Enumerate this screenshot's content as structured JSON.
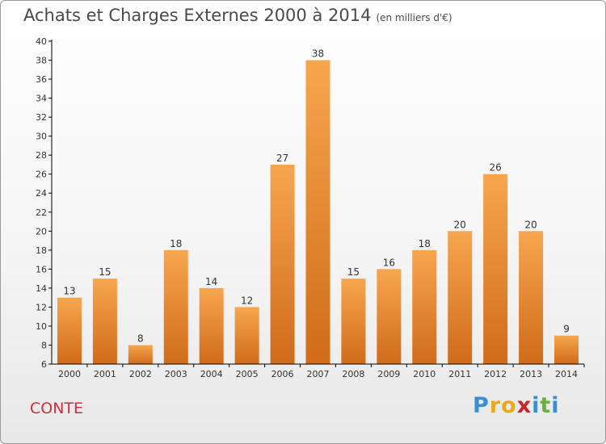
{
  "title": "Achats et Charges Externes 2000 à 2014",
  "unit": "(en milliers d'€)",
  "town": "CONTE",
  "logo": {
    "letters": [
      "P",
      "r",
      "o",
      "x",
      "i",
      "t",
      "i"
    ],
    "colors": [
      "#3a8fd4",
      "#e8a820",
      "#e8a820",
      "#c32a2a",
      "#3a8fd4",
      "#6ab23a",
      "#3a8fd4"
    ]
  },
  "chart_data": {
    "type": "bar",
    "categories": [
      "2000",
      "2001",
      "2002",
      "2003",
      "2004",
      "2005",
      "2006",
      "2007",
      "2008",
      "2009",
      "2010",
      "2011",
      "2012",
      "2013",
      "2014"
    ],
    "values": [
      13,
      15,
      8,
      18,
      14,
      12,
      27,
      38,
      15,
      16,
      18,
      20,
      26,
      20,
      9
    ],
    "title": "Achats et Charges Externes 2000 à 2014",
    "ylim": [
      6,
      40
    ],
    "yticks": [
      6,
      8,
      10,
      12,
      14,
      16,
      18,
      20,
      22,
      24,
      26,
      28,
      30,
      32,
      34,
      36,
      38,
      40
    ],
    "grid": false,
    "colors": {
      "bar_top": "#f7a64f",
      "bar_bottom": "#d06b1a",
      "axis": "#000000",
      "text": "#333333"
    }
  }
}
